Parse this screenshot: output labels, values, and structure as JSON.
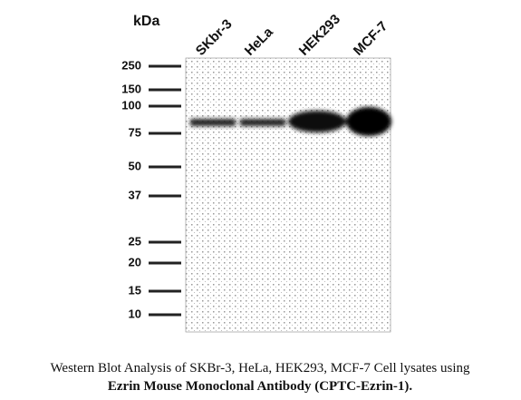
{
  "unit_label": "kDa",
  "lanes": [
    "SKbr-3",
    "HeLa",
    "HEK293",
    "MCF-7"
  ],
  "markers": [
    "250",
    "150",
    "100",
    "75",
    "50",
    "37",
    "25",
    "20",
    "15",
    "10"
  ],
  "caption": [
    "Western Blot Analysis of SKBr-3, HeLa, HEK293, MCF-7 Cell lysates using",
    "Ezrin Mouse Monoclonal Antibody (CPTC-Ezrin-1)."
  ]
}
